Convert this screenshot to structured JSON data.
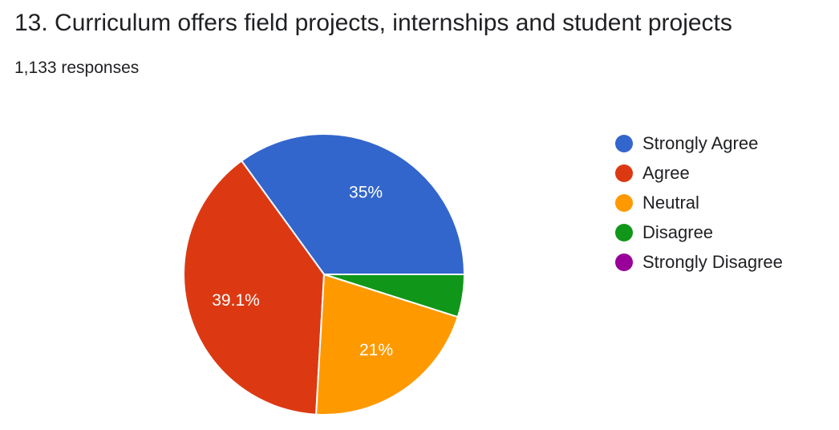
{
  "header": {
    "title": "13. Curriculum offers field projects, internships and student projects",
    "responses": "1,133 responses"
  },
  "chart_data": {
    "type": "pie",
    "title": "13. Curriculum offers field projects, internships and student projects",
    "categories": [
      "Strongly Agree",
      "Agree",
      "Neutral",
      "Disagree",
      "Strongly Disagree"
    ],
    "values": [
      35.0,
      39.1,
      21.0,
      4.9,
      0.0
    ],
    "labels": [
      "35%",
      "39.1%",
      "21%",
      "",
      ""
    ],
    "colors": [
      "#3366cc",
      "#dc3912",
      "#ff9900",
      "#109618",
      "#990099"
    ],
    "legend_position": "right"
  }
}
